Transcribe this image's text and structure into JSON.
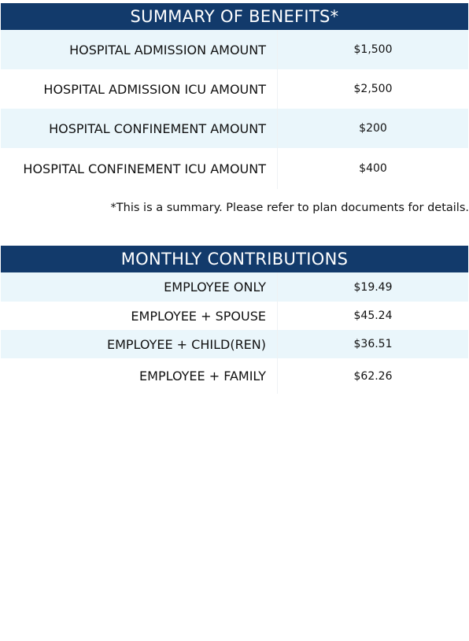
{
  "benefits": {
    "title": "SUMMARY OF BENEFITS*",
    "rows": [
      [
        "HOSPITAL ADMISSION AMOUNT",
        "$1,500"
      ],
      [
        "HOSPITAL ADMISSION ICU AMOUNT",
        "$2,500"
      ],
      [
        "HOSPITAL CONFINEMENT AMOUNT",
        "$200"
      ],
      [
        "HOSPITAL CONFINEMENT ICU AMOUNT",
        "$400"
      ]
    ],
    "footnote": "*This is a summary. Please refer to plan documents for details."
  },
  "contributions": {
    "title": "MONTHLY CONTRIBUTIONS",
    "rows": [
      [
        "EMPLOYEE ONLY",
        "$19.49"
      ],
      [
        "EMPLOYEE + SPOUSE",
        "$45.24"
      ],
      [
        "EMPLOYEE + CHILD(REN)",
        "$36.51"
      ],
      [
        "EMPLOYEE + FAMILY",
        "$62.26"
      ]
    ]
  }
}
